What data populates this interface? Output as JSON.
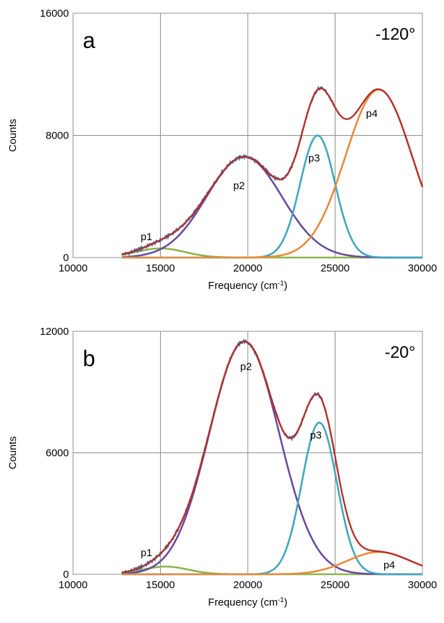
{
  "chart_data": [
    {
      "type": "line",
      "panel_label": "a",
      "annotation": "-120°",
      "xlabel": "Frequency (cm",
      "xlabel_sup": "-1",
      "xlabel_close": ")",
      "ylabel": "Counts",
      "xlim": [
        10000,
        30000
      ],
      "ylim": [
        0,
        16000
      ],
      "xticks": [
        "10000",
        "15000",
        "20000",
        "25000",
        "30000"
      ],
      "yticks": [
        "0",
        "8000",
        "16000"
      ],
      "grid": true,
      "colors": {
        "data": "#3d6fb5",
        "fit": "#b4302a",
        "p1": "#8ab34a",
        "p2": "#6a4a9c",
        "p3": "#3fa6bd",
        "p4": "#e8893a"
      },
      "peaks": [
        {
          "label": "p1",
          "center": 15000,
          "amplitude": 600,
          "sigma": 1400,
          "label_at": [
            14200,
            1150
          ]
        },
        {
          "label": "p2",
          "center": 19800,
          "amplitude": 6600,
          "sigma": 2150,
          "label_at": [
            19500,
            4500
          ]
        },
        {
          "label": "p3",
          "center": 24000,
          "amplitude": 8000,
          "sigma": 1000,
          "label_at": [
            23800,
            6300
          ]
        },
        {
          "label": "p4",
          "center": 27500,
          "amplitude": 11000,
          "sigma": 1900,
          "label_at": [
            27100,
            9200
          ]
        }
      ],
      "data_range": [
        12800,
        25000
      ],
      "fit_range": [
        12800,
        30000
      ]
    },
    {
      "type": "line",
      "panel_label": "b",
      "annotation": "-20°",
      "xlabel": "Frequency (cm",
      "xlabel_sup": "-1",
      "xlabel_close": ")",
      "ylabel": "Counts",
      "xlim": [
        10000,
        30000
      ],
      "ylim": [
        0,
        12000
      ],
      "xticks": [
        "10000",
        "15000",
        "20000",
        "25000",
        "30000"
      ],
      "yticks": [
        "0",
        "6000",
        "12000"
      ],
      "grid": true,
      "colors": {
        "data": "#3d6fb5",
        "fit": "#b4302a",
        "p1": "#8ab34a",
        "p2": "#6a4a9c",
        "p3": "#3fa6bd",
        "p4": "#e8893a"
      },
      "peaks": [
        {
          "label": "p1",
          "center": 15300,
          "amplitude": 380,
          "sigma": 1300,
          "label_at": [
            14200,
            900
          ]
        },
        {
          "label": "p2",
          "center": 19800,
          "amplitude": 11500,
          "sigma": 2000,
          "label_at": [
            19900,
            10100
          ]
        },
        {
          "label": "p3",
          "center": 24100,
          "amplitude": 7500,
          "sigma": 1000,
          "label_at": [
            23900,
            6700
          ]
        },
        {
          "label": "p4",
          "center": 27500,
          "amplitude": 1100,
          "sigma": 1800,
          "label_at": [
            28100,
            300
          ]
        }
      ],
      "data_range": [
        12800,
        25000
      ],
      "fit_range": [
        12800,
        30000
      ]
    }
  ]
}
